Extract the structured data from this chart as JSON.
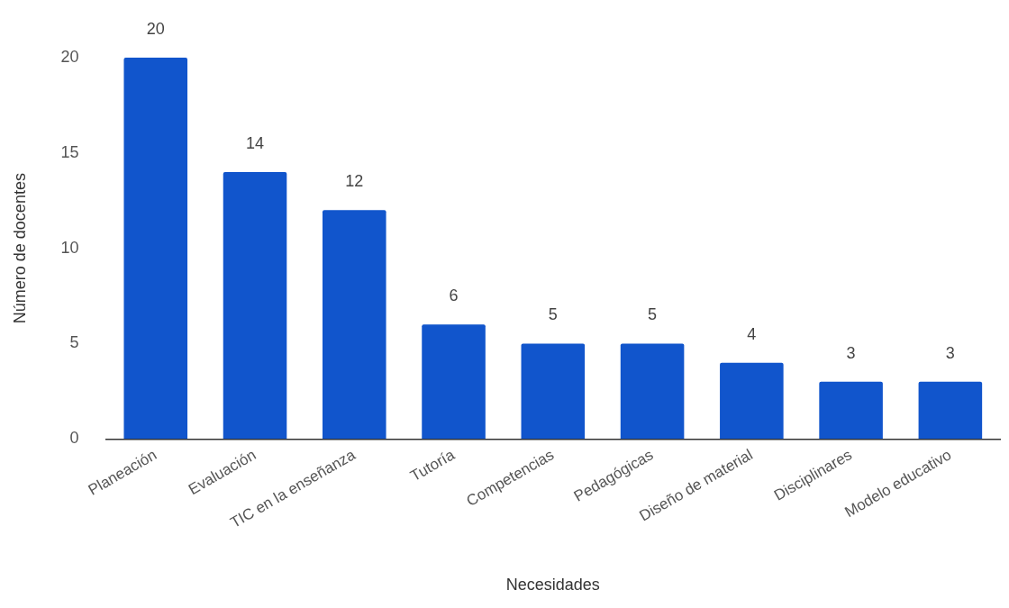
{
  "chart_data": {
    "type": "bar",
    "xlabel": "Necesidades",
    "ylabel": "Número de docentes",
    "categories": [
      "Planeación",
      "Evaluación",
      "TIC en la enseñanza",
      "Tutoría",
      "Competencias",
      "Pedagógicas",
      "Diseño de material",
      "Disciplinares",
      "Modelo educativo"
    ],
    "values": [
      20,
      14,
      12,
      6,
      5,
      5,
      4,
      3,
      3
    ],
    "color": "#1155cc",
    "ylim": [
      0,
      20
    ],
    "yticks": [
      0,
      5,
      10,
      15,
      20
    ],
    "grid": false,
    "legend": false,
    "data_labels": true
  }
}
